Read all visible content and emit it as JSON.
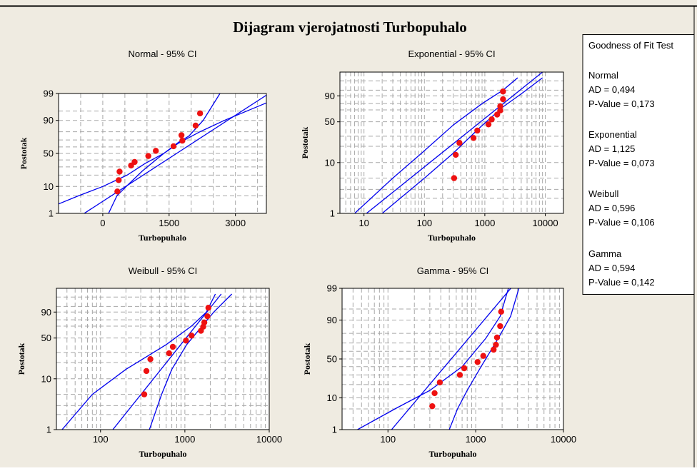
{
  "window": {
    "title": "Dijagram vjerojatnosti Turbopuhalo",
    "background_color": "#efebe1",
    "line_color": "#0000ee",
    "point_color": "#ee1111"
  },
  "legend": {
    "title": "Goodness of Fit Test",
    "entries": [
      {
        "name": "Normal",
        "ad": "AD = 0,494",
        "p": "P-Value = 0,173"
      },
      {
        "name": "Exponential",
        "ad": "AD = 1,125",
        "p": "P-Value = 0,073"
      },
      {
        "name": "Weibull",
        "ad": "AD = 0,596",
        "p": "P-Value = 0,106"
      },
      {
        "name": "Gamma",
        "ad": "AD = 0,594",
        "p": "P-Value = 0,142"
      }
    ]
  },
  "chart_data": [
    {
      "type": "scatter",
      "title": "Normal - 95% CI",
      "xlabel": "Turbopuhalo",
      "ylabel": "Postotak",
      "x_scale": "linear",
      "y_scale": "normal-probability",
      "xlim": [
        -1000,
        3700
      ],
      "ylim": [
        1,
        99
      ],
      "x_ticks": [
        "0",
        "1500",
        "3000"
      ],
      "y_ticks": [
        "1",
        "10",
        "50",
        "90",
        "99"
      ],
      "points": [
        {
          "x": 330,
          "y": 7
        },
        {
          "x": 360,
          "y": 15
        },
        {
          "x": 380,
          "y": 24
        },
        {
          "x": 640,
          "y": 32
        },
        {
          "x": 720,
          "y": 37
        },
        {
          "x": 1030,
          "y": 46
        },
        {
          "x": 1200,
          "y": 54
        },
        {
          "x": 1600,
          "y": 61
        },
        {
          "x": 1800,
          "y": 69
        },
        {
          "x": 1780,
          "y": 76
        },
        {
          "x": 2100,
          "y": 86
        },
        {
          "x": 2200,
          "y": 94
        }
      ],
      "fit_line": [
        [
          -420,
          1
        ],
        [
          3760,
          99
        ]
      ],
      "ci_lower": [
        [
          130,
          1
        ],
        [
          320,
          5
        ],
        [
          530,
          10
        ],
        [
          900,
          25
        ],
        [
          1200,
          40
        ],
        [
          1380,
          50
        ],
        [
          1700,
          65
        ],
        [
          2200,
          80
        ],
        [
          2750,
          90
        ],
        [
          3700,
          97.5
        ]
      ],
      "ci_upper": [
        [
          -1000,
          2.5
        ],
        [
          -550,
          5
        ],
        [
          0,
          10
        ],
        [
          550,
          20
        ],
        [
          960,
          35
        ],
        [
          1380,
          50
        ],
        [
          1720,
          67
        ],
        [
          1950,
          75
        ],
        [
          2270,
          90
        ],
        [
          2650,
          99
        ]
      ]
    },
    {
      "type": "scatter",
      "title": "Exponential - 95% CI",
      "xlabel": "Turbopuhalo",
      "ylabel": "Postotak",
      "x_scale": "log",
      "y_scale": "exponential-probability",
      "xlim": [
        4,
        20000
      ],
      "ylim": [
        1,
        99
      ],
      "x_ticks": [
        "10",
        "100",
        "1000",
        "10000"
      ],
      "y_ticks": [
        "1",
        "10",
        "50",
        "90"
      ],
      "points": [
        {
          "x": 310,
          "y": 5
        },
        {
          "x": 330,
          "y": 14
        },
        {
          "x": 380,
          "y": 23
        },
        {
          "x": 650,
          "y": 28
        },
        {
          "x": 750,
          "y": 37
        },
        {
          "x": 1150,
          "y": 46
        },
        {
          "x": 1300,
          "y": 54
        },
        {
          "x": 1600,
          "y": 62
        },
        {
          "x": 1800,
          "y": 69
        },
        {
          "x": 1800,
          "y": 76
        },
        {
          "x": 2000,
          "y": 86
        },
        {
          "x": 2000,
          "y": 94
        }
      ],
      "fit_line": [
        [
          11,
          1
        ],
        [
          9000,
          99.9
        ]
      ],
      "ci_lower": [
        [
          20,
          1
        ],
        [
          100,
          5
        ],
        [
          300,
          15
        ],
        [
          800,
          40
        ],
        [
          2000,
          75
        ],
        [
          4000,
          92
        ],
        [
          9000,
          99.5
        ]
      ],
      "ci_upper": [
        [
          7,
          1
        ],
        [
          30,
          5
        ],
        [
          90,
          15
        ],
        [
          300,
          45
        ],
        [
          900,
          80
        ],
        [
          2000,
          95
        ],
        [
          3500,
          99.5
        ]
      ]
    },
    {
      "type": "scatter",
      "title": "Weibull - 95% CI",
      "xlabel": "Turbopuhalo",
      "ylabel": "Postotak",
      "x_scale": "log",
      "y_scale": "weibull-probability",
      "xlim": [
        30,
        10000
      ],
      "ylim": [
        1,
        99
      ],
      "x_ticks": [
        "100",
        "1000",
        "10000"
      ],
      "y_ticks": [
        "1",
        "10",
        "50",
        "90"
      ],
      "points": [
        {
          "x": 330,
          "y": 5
        },
        {
          "x": 350,
          "y": 14
        },
        {
          "x": 390,
          "y": 23
        },
        {
          "x": 650,
          "y": 29
        },
        {
          "x": 720,
          "y": 37
        },
        {
          "x": 1030,
          "y": 46
        },
        {
          "x": 1200,
          "y": 54
        },
        {
          "x": 1550,
          "y": 62
        },
        {
          "x": 1650,
          "y": 69
        },
        {
          "x": 1700,
          "y": 76
        },
        {
          "x": 1850,
          "y": 85
        },
        {
          "x": 1900,
          "y": 94
        }
      ],
      "fit_line": [
        [
          140,
          1
        ],
        [
          2700,
          99.5
        ]
      ],
      "ci_lower": [
        [
          380,
          1
        ],
        [
          530,
          5
        ],
        [
          700,
          15
        ],
        [
          1050,
          40
        ],
        [
          1600,
          70
        ],
        [
          2200,
          90
        ],
        [
          3600,
          99.5
        ]
      ],
      "ci_upper": [
        [
          35,
          1
        ],
        [
          80,
          5
        ],
        [
          200,
          15
        ],
        [
          600,
          40
        ],
        [
          1200,
          70
        ],
        [
          1800,
          90
        ],
        [
          2300,
          99.5
        ]
      ]
    },
    {
      "type": "scatter",
      "title": "Gamma - 95% CI",
      "xlabel": "Turbopuhalo",
      "ylabel": "Postotak",
      "x_scale": "log",
      "y_scale": "gamma-probability",
      "xlim": [
        30,
        10000
      ],
      "ylim": [
        1,
        99
      ],
      "x_ticks": [
        "100",
        "1000",
        "10000"
      ],
      "y_ticks": [
        "1",
        "10",
        "50",
        "90",
        "99"
      ],
      "points": [
        {
          "x": 320,
          "y": 6
        },
        {
          "x": 340,
          "y": 13
        },
        {
          "x": 390,
          "y": 22
        },
        {
          "x": 660,
          "y": 30
        },
        {
          "x": 740,
          "y": 38
        },
        {
          "x": 1050,
          "y": 46
        },
        {
          "x": 1220,
          "y": 54
        },
        {
          "x": 1600,
          "y": 62
        },
        {
          "x": 1700,
          "y": 68
        },
        {
          "x": 1750,
          "y": 76
        },
        {
          "x": 1900,
          "y": 86
        },
        {
          "x": 1950,
          "y": 94
        }
      ],
      "fit_line": [
        [
          110,
          1
        ],
        [
          4200,
          99.9
        ]
      ],
      "ci_lower": [
        [
          500,
          1
        ],
        [
          620,
          5
        ],
        [
          800,
          15
        ],
        [
          1150,
          40
        ],
        [
          1800,
          75
        ],
        [
          2500,
          92
        ],
        [
          3300,
          99.5
        ]
      ],
      "ci_upper": [
        [
          45,
          1
        ],
        [
          120,
          5
        ],
        [
          300,
          15
        ],
        [
          700,
          40
        ],
        [
          1300,
          75
        ],
        [
          1900,
          92
        ],
        [
          2500,
          99.5
        ]
      ]
    }
  ]
}
